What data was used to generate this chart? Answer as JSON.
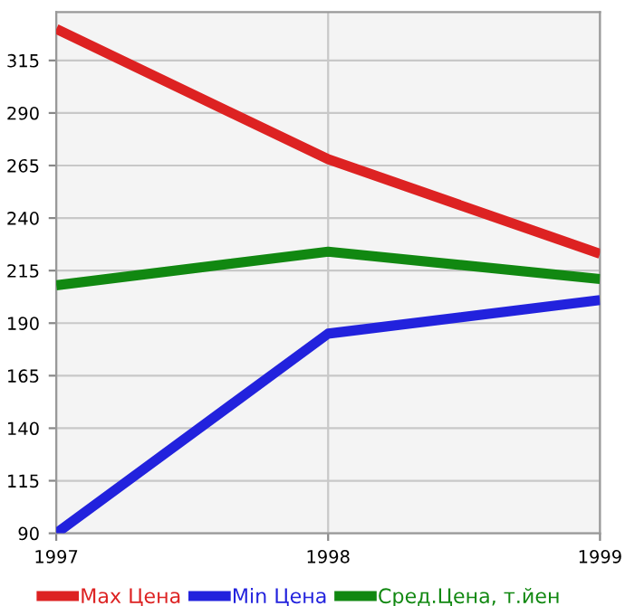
{
  "chart_data": {
    "type": "line",
    "x": [
      1997,
      1998,
      1999
    ],
    "xlim": [
      1997,
      1999
    ],
    "xticks": [
      1997,
      1998,
      1999
    ],
    "ylim": [
      90,
      338
    ],
    "yticks": [
      90,
      115,
      140,
      165,
      190,
      215,
      240,
      265,
      290,
      315
    ],
    "grid": true,
    "legend": "bottom",
    "line_style": "solid",
    "marker": "none",
    "series": [
      {
        "name": "Max Цена",
        "color": "#dd2222",
        "values": [
          330,
          268,
          223
        ]
      },
      {
        "name": "Min Цена",
        "color": "#2222dd",
        "values": [
          90,
          185,
          201
        ]
      },
      {
        "name": "Сред.Цена, т.йен",
        "color": "#118811",
        "values": [
          208,
          224,
          211
        ]
      }
    ]
  }
}
